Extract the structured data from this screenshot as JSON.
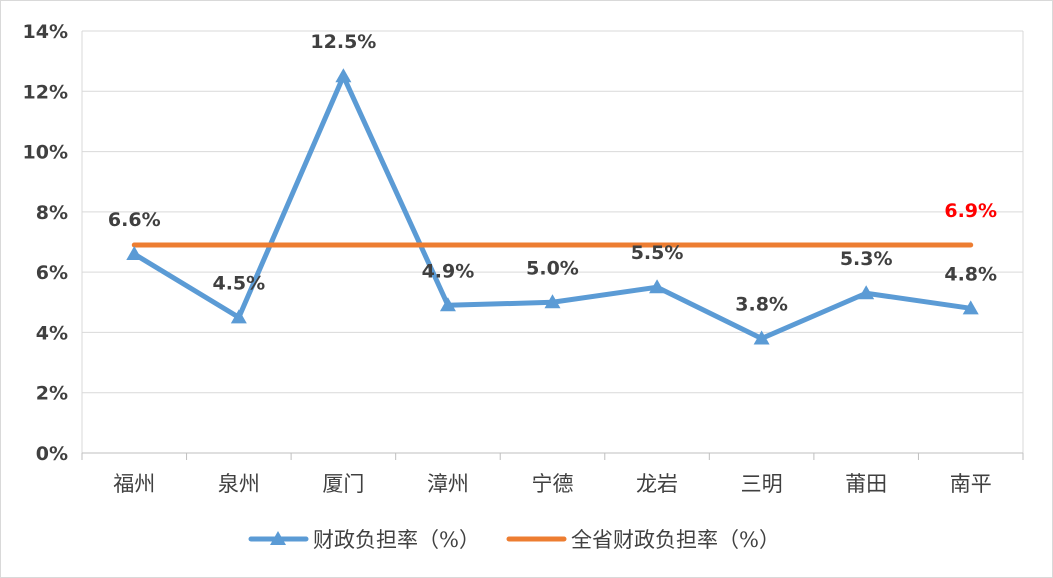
{
  "chart_data": {
    "type": "line",
    "categories": [
      "福州",
      "泉州",
      "厦门",
      "漳州",
      "宁德",
      "龙岩",
      "三明",
      "莆田",
      "南平"
    ],
    "series": [
      {
        "name": "财政负担率（%）",
        "values": [
          6.6,
          4.5,
          12.5,
          4.9,
          5.0,
          5.5,
          3.8,
          5.3,
          4.8
        ],
        "labels": [
          "6.6%",
          "4.5%",
          "12.5%",
          "4.9%",
          "5.0%",
          "5.5%",
          "3.8%",
          "5.3%",
          "4.8%"
        ],
        "color": "#5B9BD5",
        "marker": "triangle"
      },
      {
        "name": "全省财政负担率（%）",
        "values": [
          6.9,
          6.9,
          6.9,
          6.9,
          6.9,
          6.9,
          6.9,
          6.9,
          6.9
        ],
        "labels": [
          "",
          "",
          "",
          "",
          "",
          "",
          "",
          "",
          "6.9%"
        ],
        "color": "#ED7D31",
        "label_color": "#FF0000",
        "marker": "none"
      }
    ],
    "yticks": [
      0,
      2,
      4,
      6,
      8,
      10,
      12,
      14
    ],
    "ytick_labels": [
      "0%",
      "2%",
      "4%",
      "6%",
      "8%",
      "10%",
      "12%",
      "14%"
    ],
    "ylim": [
      0,
      14
    ],
    "grid": true,
    "legend_position": "bottom"
  }
}
